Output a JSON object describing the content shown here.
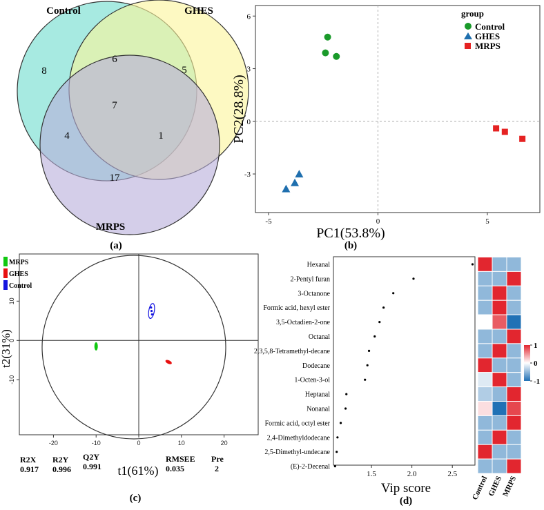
{
  "chart_data": [
    {
      "type": "venn",
      "panel_label": "(a)",
      "sets": [
        "Control",
        "GHES",
        "MRPS"
      ],
      "colors": {
        "Control": "#5fd8c8",
        "GHES": "#fbf59a",
        "MRPS": "#b7addb"
      },
      "regions": [
        {
          "sets": [
            "Control"
          ],
          "value": "8"
        },
        {
          "sets": [
            "GHES"
          ],
          "value": "5"
        },
        {
          "sets": [
            "MRPS"
          ],
          "value": "17"
        },
        {
          "sets": [
            "Control",
            "GHES"
          ],
          "value": "6"
        },
        {
          "sets": [
            "Control",
            "MRPS"
          ],
          "value": "4"
        },
        {
          "sets": [
            "GHES",
            "MRPS"
          ],
          "value": "1"
        },
        {
          "sets": [
            "Control",
            "GHES",
            "MRPS"
          ],
          "value": "7"
        }
      ]
    },
    {
      "type": "scatter",
      "panel_label": "(b)",
      "xlabel": "PC1(53.8%)",
      "ylabel": "PC2(28.8%)",
      "xlim": [
        -5.6,
        7.4
      ],
      "ylim": [
        -5.2,
        6.6
      ],
      "xticks": [
        "-5",
        "0",
        "5"
      ],
      "xtick_values": [
        -5,
        0,
        5
      ],
      "yticks": [
        "-3",
        "0",
        "3",
        "6"
      ],
      "ytick_values": [
        -3,
        0,
        3,
        6
      ],
      "legend": {
        "title": "group",
        "position": "top-right"
      },
      "series": [
        {
          "name": "Control",
          "marker": "circle",
          "color": "#1a9a2a",
          "x": [
            -2.3,
            -2.4,
            -1.9
          ],
          "y": [
            4.8,
            3.9,
            3.7
          ]
        },
        {
          "name": "GHES",
          "marker": "triangle",
          "color": "#1f6fae",
          "x": [
            -3.6,
            -3.8,
            -4.2
          ],
          "y": [
            -3.0,
            -3.5,
            -3.85
          ]
        },
        {
          "name": "MRPS",
          "marker": "square",
          "color": "#e52222",
          "x": [
            5.4,
            5.8,
            6.6
          ],
          "y": [
            -0.4,
            -0.6,
            -1.0
          ]
        }
      ]
    },
    {
      "type": "scatter",
      "panel_label": "(c)",
      "xlabel": "t1(61%)",
      "ylabel": "t2(31%)",
      "xlim": [
        -28,
        28
      ],
      "ylim": [
        -24,
        22
      ],
      "xticks": [
        "-20",
        "-10",
        "0",
        "10",
        "20"
      ],
      "xtick_values": [
        -20,
        -10,
        0,
        10,
        20
      ],
      "yticks": [
        "10",
        "0",
        "-10"
      ],
      "ytick_values": [
        10,
        0,
        -10
      ],
      "legend": {
        "position": "top-left"
      },
      "series": [
        {
          "name": "MRPS",
          "color": "#10c810",
          "x": -10,
          "y": -1.5
        },
        {
          "name": "GHES",
          "color": "#e81010",
          "x": 7,
          "y": -5.5
        },
        {
          "name": "Control",
          "color": "#1414e0",
          "x": 3,
          "y": 7.5
        }
      ],
      "stats": [
        {
          "label": "R2X",
          "value": "0.917"
        },
        {
          "label": "R2Y",
          "value": "0.996"
        },
        {
          "label": "Q2Y",
          "value": "0.991"
        },
        {
          "label": "RMSEE",
          "value": "0.035"
        },
        {
          "label": "Pre",
          "value": "2"
        }
      ]
    },
    {
      "type": "scatter",
      "panel_label": "(d)",
      "xlabel": "Vip score",
      "xlim": [
        1.03,
        2.78
      ],
      "xticks": [
        "1.5",
        "2.0",
        "2.5"
      ],
      "xtick_values": [
        1.5,
        2.0,
        2.5
      ],
      "categories": [
        "Hexanal",
        "2-Pentyl furan",
        "3-Octanone",
        "Formic acid, hexyl ester",
        "3,5-Octadien-2-one",
        "Octanal",
        "2,3,5,8-Tetramethyl-decane",
        "Dodecane",
        "1-Octen-3-ol",
        "Heptanal",
        "Nonanal",
        "Formic acid, octyl ester",
        "2,4-Dimethyldodecane",
        "2,5-Dimethyl-undecane",
        "(E)-2-Decenal"
      ],
      "values": [
        2.75,
        2.02,
        1.77,
        1.65,
        1.6,
        1.54,
        1.47,
        1.45,
        1.42,
        1.19,
        1.18,
        1.12,
        1.08,
        1.07,
        1.05
      ]
    },
    {
      "type": "heatmap",
      "columns": [
        "Control",
        "GHES",
        "MRPS"
      ],
      "rows": [
        "Hexanal",
        "2-Pentyl furan",
        "3-Octanone",
        "Formic acid, hexyl ester",
        "3,5-Octadien-2-one",
        "Octanal",
        "2,3,5,8-Tetramethyl-decane",
        "Dodecane",
        "1-Octen-3-ol",
        "Heptanal",
        "Nonanal",
        "Formic acid, octyl ester",
        "2,4-Dimethyldodecane",
        "2,5-Dimethyl-undecane",
        "(E)-2-Decenal"
      ],
      "values": [
        [
          1,
          -0.5,
          -0.5
        ],
        [
          -0.5,
          -0.5,
          1
        ],
        [
          -0.5,
          1,
          -0.5
        ],
        [
          -0.5,
          1,
          -0.5
        ],
        [
          0,
          0.75,
          -1
        ],
        [
          -0.5,
          -0.5,
          1
        ],
        [
          -0.5,
          1,
          -0.5
        ],
        [
          1,
          -0.5,
          -0.5
        ],
        [
          -0.15,
          1,
          -0.5
        ],
        [
          -0.35,
          -0.5,
          1
        ],
        [
          0.15,
          -1,
          0.85
        ],
        [
          -0.5,
          -0.5,
          1
        ],
        [
          -0.5,
          1,
          -0.5
        ],
        [
          1,
          -0.5,
          -0.5
        ],
        [
          -0.5,
          -0.5,
          1
        ]
      ],
      "colorbar": {
        "ticks": [
          "1",
          "0",
          "-1"
        ],
        "tick_values": [
          1,
          0,
          -1
        ],
        "low": "#2171b5",
        "mid": "#ffffff",
        "high": "#e2262f"
      }
    }
  ]
}
